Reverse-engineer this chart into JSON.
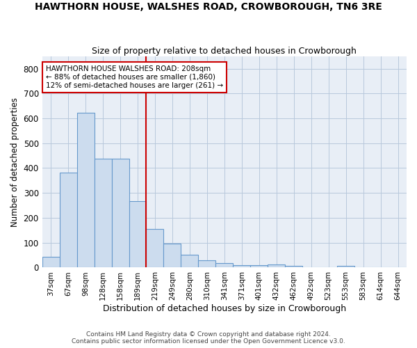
{
  "title": "HAWTHORN HOUSE, WALSHES ROAD, CROWBOROUGH, TN6 3RE",
  "subtitle": "Size of property relative to detached houses in Crowborough",
  "xlabel": "Distribution of detached houses by size in Crowborough",
  "ylabel": "Number of detached properties",
  "bar_labels": [
    "37sqm",
    "67sqm",
    "98sqm",
    "128sqm",
    "158sqm",
    "189sqm",
    "219sqm",
    "249sqm",
    "280sqm",
    "310sqm",
    "341sqm",
    "371sqm",
    "401sqm",
    "432sqm",
    "462sqm",
    "492sqm",
    "523sqm",
    "553sqm",
    "583sqm",
    "614sqm",
    "644sqm"
  ],
  "bar_values": [
    44,
    382,
    623,
    439,
    439,
    268,
    155,
    96,
    52,
    29,
    17,
    11,
    11,
    13,
    8,
    0,
    0,
    7,
    0,
    0,
    0
  ],
  "bar_color": "#ccdcee",
  "bar_edge_color": "#6699cc",
  "annotation_lines": [
    "HAWTHORN HOUSE WALSHES ROAD: 208sqm",
    "← 88% of detached houses are smaller (1,860)",
    "12% of semi-detached houses are larger (261) →"
  ],
  "annotation_box_color": "#cc0000",
  "vline_color": "#cc0000",
  "vline_x_index": 6,
  "ylim": [
    0,
    850
  ],
  "yticks": [
    0,
    100,
    200,
    300,
    400,
    500,
    600,
    700,
    800
  ],
  "grid_color": "#b8c8dc",
  "bg_color": "#e8eef6",
  "footer1": "Contains HM Land Registry data © Crown copyright and database right 2024.",
  "footer2": "Contains public sector information licensed under the Open Government Licence v3.0."
}
